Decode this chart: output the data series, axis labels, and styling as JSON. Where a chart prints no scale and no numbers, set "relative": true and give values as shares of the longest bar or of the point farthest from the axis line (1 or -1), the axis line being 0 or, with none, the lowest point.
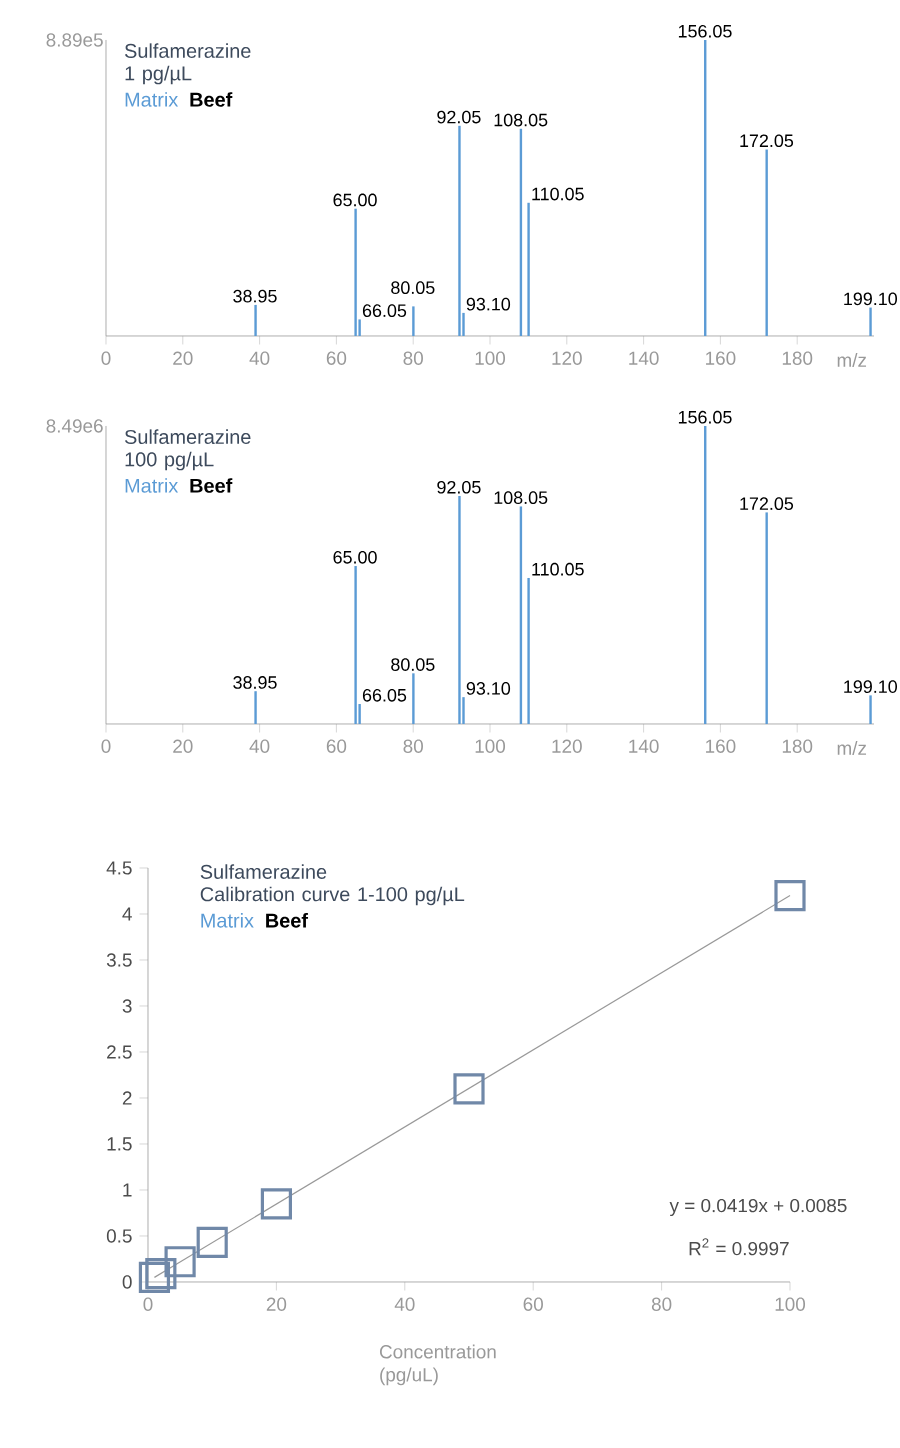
{
  "chart_data": [
    {
      "type": "bar",
      "title": "Sulfamerazine",
      "subtitle": "1 pg/µL",
      "xlabel": "m/z",
      "relative": true,
      "color": "#5b9bd5",
      "x": [
        38.95,
        65.0,
        66.05,
        80.05,
        92.05,
        93.1,
        108.05,
        110.05,
        156.05,
        172.05,
        199.1
      ],
      "values": [
        0.105,
        0.43,
        0.056,
        0.1,
        0.71,
        0.078,
        0.7,
        0.45,
        1,
        0.63,
        0.096
      ],
      "xlim": [
        0,
        200
      ],
      "xticks": [
        0,
        20,
        40,
        60,
        80,
        100,
        120,
        140,
        160,
        180
      ],
      "annotations": [
        "8.89e5",
        "Matrix",
        "Beef",
        {
          "text": "38.95",
          "x": 38.95,
          "y": 0.105
        },
        {
          "text": "65.00",
          "x": 65.0,
          "y": 0.43
        },
        {
          "text": "66.05",
          "x": 66.05,
          "y": 0.056
        },
        {
          "text": "80.05",
          "x": 80.05,
          "y": 0.1
        },
        {
          "text": "92.05",
          "x": 92.05,
          "y": 0.71
        },
        {
          "text": "93.10",
          "x": 93.1,
          "y": 0.078
        },
        {
          "text": "108.05",
          "x": 108.05,
          "y": 0.7
        },
        {
          "text": "110.05",
          "x": 110.05,
          "y": 0.45
        },
        {
          "text": "156.05",
          "x": 156.05,
          "y": 1
        },
        {
          "text": "172.05",
          "x": 172.05,
          "y": 0.63
        },
        {
          "text": "199.10",
          "x": 199.1,
          "y": 0.096
        }
      ]
    },
    {
      "type": "bar",
      "title": "Sulfamerazine",
      "subtitle": "100 pg/µL",
      "xlabel": "m/z",
      "relative": true,
      "color": "#5b9bd5",
      "x": [
        38.95,
        65.0,
        66.05,
        80.05,
        92.05,
        93.1,
        108.05,
        110.05,
        156.05,
        172.05,
        199.1
      ],
      "values": [
        0.11,
        0.53,
        0.067,
        0.17,
        0.765,
        0.09,
        0.73,
        0.49,
        1,
        0.71,
        0.096
      ],
      "xlim": [
        0,
        200
      ],
      "xticks": [
        0,
        20,
        40,
        60,
        80,
        100,
        120,
        140,
        160,
        180
      ],
      "annotations": [
        "8.49e6",
        "Matrix",
        "Beef",
        {
          "text": "38.95",
          "x": 38.95,
          "y": 0.11
        },
        {
          "text": "65.00",
          "x": 65.0,
          "y": 0.53
        },
        {
          "text": "66.05",
          "x": 66.05,
          "y": 0.067
        },
        {
          "text": "80.05",
          "x": 80.05,
          "y": 0.17
        },
        {
          "text": "92.05",
          "x": 92.05,
          "y": 0.765
        },
        {
          "text": "93.10",
          "x": 93.1,
          "y": 0.09
        },
        {
          "text": "108.05",
          "x": 108.05,
          "y": 0.73
        },
        {
          "text": "110.05",
          "x": 110.05,
          "y": 0.49
        },
        {
          "text": "156.05",
          "x": 156.05,
          "y": 1
        },
        {
          "text": "172.05",
          "x": 172.05,
          "y": 0.71
        },
        {
          "text": "199.10",
          "x": 199.1,
          "y": 0.096
        }
      ]
    },
    {
      "type": "scatter",
      "title": "Sulfamerazine",
      "subtitle": "Calibration curve 1-100 pg/µL",
      "xlabel": "Concentration (pg/uL)",
      "series": [
        {
          "color": "#7088a8",
          "marker": "square",
          "x": [
            1,
            2,
            5,
            10,
            20,
            50,
            100
          ],
          "values": [
            0.05,
            0.09,
            0.22,
            0.43,
            0.85,
            2.1,
            4.2
          ]
        },
        {
          "type": "line",
          "color": "#999999",
          "x": [
            1,
            100
          ],
          "values": [
            0.05,
            4.2
          ]
        }
      ],
      "xlim": [
        0,
        100
      ],
      "xticks": [
        0,
        20,
        40,
        60,
        80,
        100
      ],
      "ylim": [
        0,
        4.5
      ],
      "yticks": [
        0,
        0.5,
        1,
        1.5,
        2,
        2.5,
        3,
        3.5,
        4,
        4.5
      ],
      "annotations": [
        "Matrix",
        "Beef",
        "y = 0.0419x + 0.0085",
        "R$^{2}$ = 0.9997"
      ]
    }
  ]
}
